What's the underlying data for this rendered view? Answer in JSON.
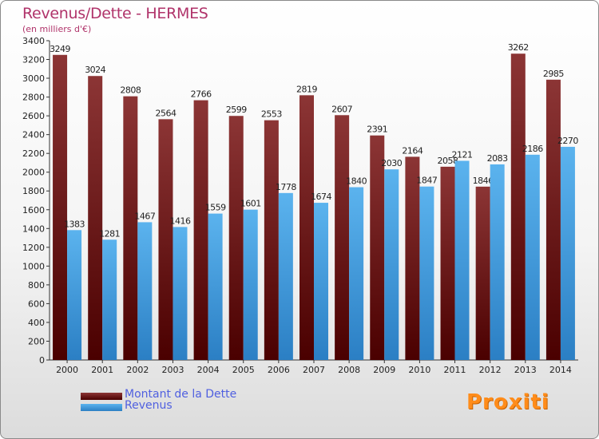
{
  "header": {
    "title": "Revenus/Dette - HERMES",
    "subtitle": "(en milliers d'€)"
  },
  "legend": {
    "items": [
      {
        "label": "Montant de la Dette",
        "color": "#7a2020"
      },
      {
        "label": "Revenus",
        "color": "#4fa8e8"
      }
    ]
  },
  "brand": {
    "logo_text": "Proxiti"
  },
  "colors": {
    "dette_top": "#8c3535",
    "dette_bottom": "#4a0000",
    "revenus_top": "#5bb3ee",
    "revenus_bottom": "#2b7fc4",
    "title": "#b0336a",
    "legend_text": "#5060e0"
  },
  "chart_data": {
    "type": "bar",
    "categories": [
      "2000",
      "2001",
      "2002",
      "2003",
      "2004",
      "2005",
      "2006",
      "2007",
      "2008",
      "2009",
      "2010",
      "2011",
      "2012",
      "2013",
      "2014"
    ],
    "series": [
      {
        "name": "Montant de la Dette",
        "values": [
          3249,
          3024,
          2808,
          2564,
          2766,
          2599,
          2553,
          2819,
          2607,
          2391,
          2164,
          2058,
          1846,
          3262,
          2985
        ]
      },
      {
        "name": "Revenus",
        "values": [
          1383,
          1281,
          1467,
          1416,
          1559,
          1601,
          1778,
          1674,
          1840,
          2030,
          1847,
          2121,
          2083,
          2186,
          2270
        ]
      }
    ],
    "title": "Revenus/Dette - HERMES",
    "subtitle": "(en milliers d'€)",
    "xlabel": "",
    "ylabel": "",
    "ylim": [
      0,
      3400
    ],
    "yticks": [
      0,
      200,
      400,
      600,
      800,
      1000,
      1200,
      1400,
      1600,
      1800,
      2000,
      2200,
      2400,
      2600,
      2800,
      3000,
      3200,
      3400
    ],
    "grid": false,
    "legend_position": "bottom-left"
  }
}
